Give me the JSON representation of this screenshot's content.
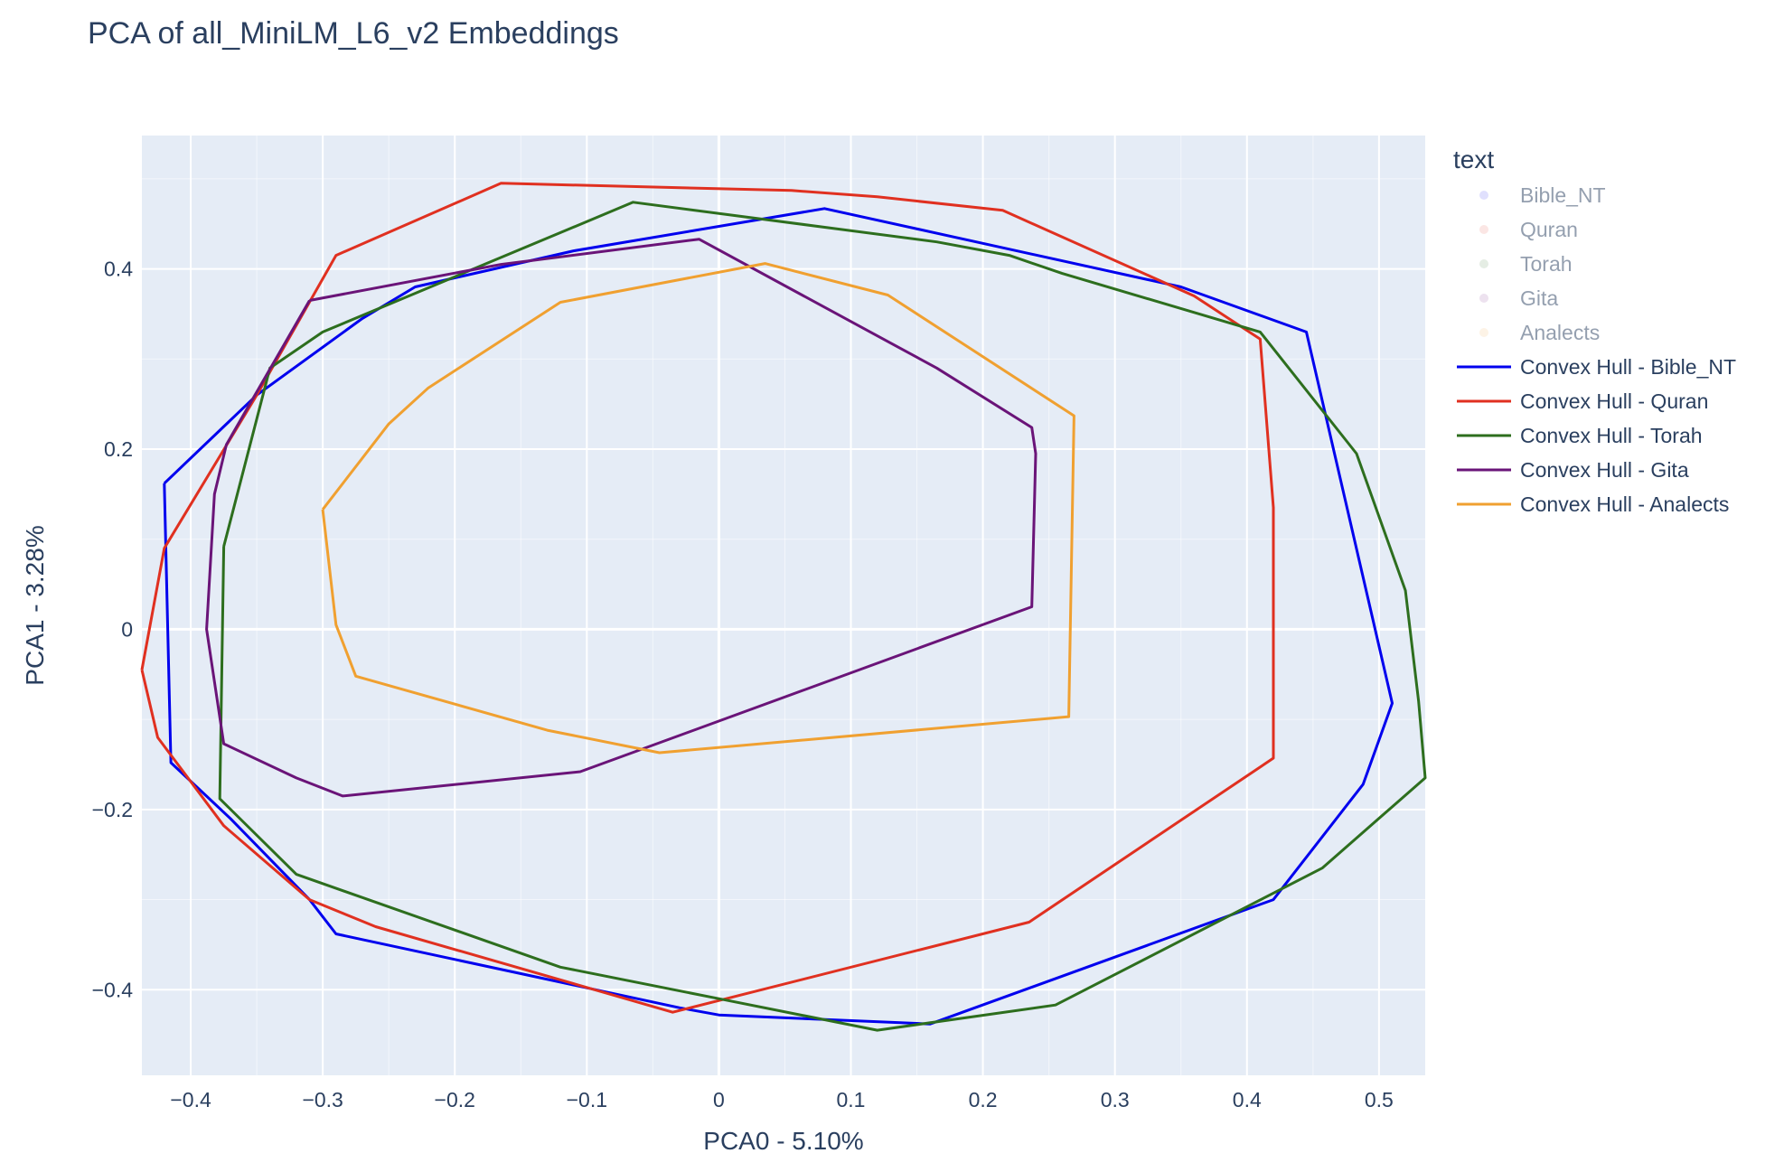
{
  "chart_data": {
    "type": "line",
    "title": "PCA of all_MiniLM_L6_v2 Embeddings",
    "xlabel": "PCA0 - 5.10%",
    "ylabel": "PCA1 - 3.28%",
    "xlim": [
      -0.437,
      0.535
    ],
    "ylim": [
      -0.495,
      0.548
    ],
    "xticks": [
      -0.4,
      -0.3,
      -0.2,
      -0.1,
      0,
      0.1,
      0.2,
      0.3,
      0.4,
      0.5
    ],
    "xtick_labels": [
      "−0.4",
      "−0.3",
      "−0.2",
      "−0.1",
      "0",
      "0.1",
      "0.2",
      "0.3",
      "0.4",
      "0.5"
    ],
    "yticks": [
      -0.4,
      -0.2,
      0,
      0.2,
      0.4
    ],
    "ytick_labels": [
      "−0.4",
      "−0.2",
      "0",
      "0.2",
      "0.4"
    ],
    "grid": true,
    "legend_placement": "right",
    "legend_title": "text",
    "legend_points": [
      {
        "name": "Bible_NT",
        "color": "#0000ee"
      },
      {
        "name": "Quran",
        "color": "#e03020"
      },
      {
        "name": "Torah",
        "color": "#2d6e1e"
      },
      {
        "name": "Gita",
        "color": "#6a1478"
      },
      {
        "name": "Analects",
        "color": "#f0a030"
      }
    ],
    "series": [
      {
        "name": "Convex Hull - Bible_NT",
        "color": "#0000ee",
        "x": [
          -0.42,
          -0.35,
          -0.27,
          -0.23,
          -0.11,
          0.08,
          0.35,
          0.445,
          0.51,
          0.488,
          0.42,
          0.16,
          0.0,
          -0.03,
          -0.29,
          -0.31,
          -0.37,
          -0.415,
          -0.42
        ],
        "y": [
          0.162,
          0.26,
          0.345,
          0.38,
          0.42,
          0.467,
          0.38,
          0.33,
          -0.082,
          -0.172,
          -0.3,
          -0.438,
          -0.428,
          -0.42,
          -0.338,
          -0.3,
          -0.21,
          -0.148,
          0.162
        ]
      },
      {
        "name": "Convex Hull - Quran",
        "color": "#e03020",
        "x": [
          -0.437,
          -0.42,
          -0.35,
          -0.29,
          -0.165,
          0.055,
          0.12,
          0.215,
          0.36,
          0.41,
          0.42,
          0.42,
          0.235,
          -0.035,
          -0.26,
          -0.31,
          -0.375,
          -0.425,
          -0.437
        ],
        "y": [
          -0.045,
          0.09,
          0.26,
          0.415,
          0.495,
          0.487,
          0.48,
          0.465,
          0.37,
          0.322,
          0.135,
          -0.143,
          -0.325,
          -0.425,
          -0.33,
          -0.3,
          -0.218,
          -0.12,
          -0.045
        ]
      },
      {
        "name": "Convex Hull - Torah",
        "color": "#2d6e1e",
        "x": [
          -0.375,
          -0.34,
          -0.3,
          -0.065,
          0.165,
          0.22,
          0.26,
          0.41,
          0.483,
          0.52,
          0.53,
          0.535,
          0.457,
          0.255,
          0.12,
          0.0,
          -0.12,
          -0.32,
          -0.378,
          -0.375
        ],
        "y": [
          0.092,
          0.29,
          0.33,
          0.474,
          0.43,
          0.415,
          0.395,
          0.33,
          0.195,
          0.043,
          -0.08,
          -0.165,
          -0.265,
          -0.417,
          -0.445,
          -0.41,
          -0.375,
          -0.272,
          -0.188,
          0.092
        ]
      },
      {
        "name": "Convex Hull - Gita",
        "color": "#6a1478",
        "x": [
          -0.31,
          -0.165,
          -0.015,
          0.165,
          0.237,
          0.24,
          0.237,
          -0.105,
          -0.285,
          -0.32,
          -0.375,
          -0.388,
          -0.382,
          -0.373,
          -0.31
        ],
        "y": [
          0.365,
          0.405,
          0.433,
          0.29,
          0.224,
          0.195,
          0.025,
          -0.158,
          -0.185,
          -0.165,
          -0.127,
          0.0,
          0.15,
          0.205,
          0.365
        ]
      },
      {
        "name": "Convex Hull - Analects",
        "color": "#f0a030",
        "x": [
          -0.3,
          -0.25,
          -0.22,
          -0.12,
          0.035,
          0.128,
          0.269,
          0.265,
          -0.045,
          -0.13,
          -0.275,
          -0.29,
          -0.3
        ],
        "y": [
          0.133,
          0.228,
          0.268,
          0.363,
          0.406,
          0.371,
          0.237,
          -0.097,
          -0.137,
          -0.112,
          -0.052,
          0.005,
          0.133
        ]
      }
    ]
  }
}
